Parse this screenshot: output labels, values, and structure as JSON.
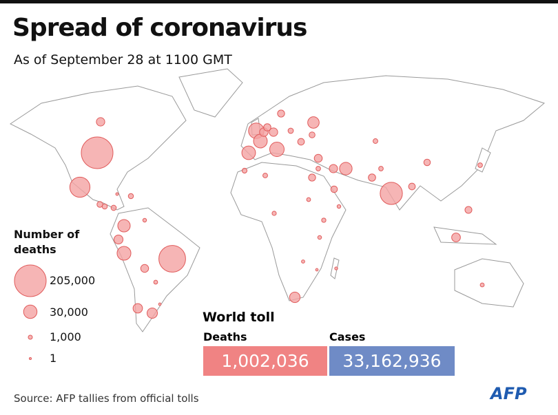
{
  "header": {
    "title": "Spread of coronavirus",
    "subtitle": "As of September 28 at 1100 GMT"
  },
  "legend": {
    "title": "Number of deaths",
    "sizes": [
      {
        "value": 205000,
        "label": "205,000"
      },
      {
        "value": 30000,
        "label": "30,000"
      },
      {
        "value": 1000,
        "label": "1,000"
      },
      {
        "value": 1,
        "label": "1"
      }
    ]
  },
  "map": {
    "deaths": [
      205000,
      142000,
      95000,
      76500,
      42000,
      35900,
      32300,
      25000,
      11300,
      31700,
      31400,
      25800,
      16100,
      12700,
      16700,
      20700,
      10400,
      10000,
      9500,
      9300,
      9000,
      8100,
      7900,
      6400,
      6300,
      5900,
      5900,
      5500,
      5000,
      4800,
      4700,
      3300,
      2500,
      5000,
      3500,
      2400,
      1550,
      2300,
      1700,
      1650,
      1900,
      875,
      1100,
      1200,
      700,
      830,
      640,
      2200,
      90,
      590,
      1500,
      1480,
      340,
      60,
      190,
      800,
      48
    ]
  },
  "world_toll": {
    "title": "World toll",
    "deaths_label": "Deaths",
    "deaths": "1,002,036",
    "cases_label": "Cases",
    "cases": "33,162,936"
  },
  "source": "Source: AFP tallies from official tolls",
  "logo": "AFP"
}
